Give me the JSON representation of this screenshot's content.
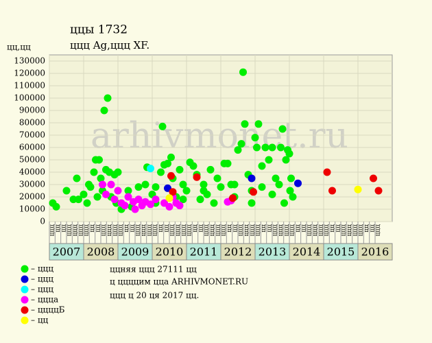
{
  "chart_data": {
    "type": "scatter",
    "title": "ццы 1732",
    "subtitle": "ццц Ag,ццц XF.",
    "y_label": "цц,цц",
    "watermark": "arhivmonet.ru",
    "xlim": [
      2007,
      2017
    ],
    "ylim": [
      0,
      130000
    ],
    "yticks": [
      0,
      10000,
      20000,
      30000,
      40000,
      50000,
      60000,
      70000,
      80000,
      90000,
      100000,
      110000,
      120000,
      130000
    ],
    "xticks": [
      2007,
      2008,
      2009,
      2010,
      2011,
      2012,
      2013,
      2014,
      2015,
      2016
    ],
    "x_sublabels": [
      "ццц",
      "цц",
      "цц",
      "ццц",
      "ццц",
      "ццц",
      "ццц",
      "цц",
      "цц",
      "ццц",
      "ццц",
      "ццц",
      "ццц",
      "цц",
      "цц",
      "ццц",
      "ццц",
      "ццц",
      "ццц",
      "цц",
      "цц",
      "ццц",
      "ццц",
      "ццц",
      "ццц",
      "цц",
      "цц",
      "ццц",
      "ццц",
      "ццц",
      "ццц",
      "цц",
      "цц",
      "ццц",
      "ццц",
      "ццц",
      "ццц",
      "цц",
      "цц",
      "ццц",
      "ццц",
      "ццц",
      "ццц",
      "цц",
      "цц",
      "ццц",
      "ццц",
      "ццц",
      "ццц",
      "цц",
      "цц",
      "ццц",
      "ццц",
      "ццц",
      "ццц",
      "цц",
      "цц",
      "ццц"
    ],
    "grid": true,
    "series": [
      {
        "name": "– ццц",
        "color": "#00ee00",
        "x": [
          2007.1,
          2007.2,
          2007.5,
          2007.7,
          2007.85,
          2007.8,
          2008.0,
          2008.1,
          2008.15,
          2008.2,
          2008.3,
          2008.35,
          2008.45,
          2008.4,
          2008.5,
          2008.55,
          2008.6,
          2008.7,
          2008.65,
          2008.75,
          2008.8,
          2008.9,
          2008.95,
          2009.0,
          2009.1,
          2009.3,
          2009.4,
          2009.6,
          2009.8,
          2009.85,
          2010.0,
          2010.1,
          2010.25,
          2010.3,
          2010.35,
          2010.45,
          2010.55,
          2010.6,
          2010.7,
          2010.8,
          2010.9,
          2011.0,
          2011.1,
          2011.2,
          2011.3,
          2011.4,
          2011.5,
          2011.6,
          2011.7,
          2011.8,
          2011.9,
          2012.0,
          2012.1,
          2012.2,
          2012.3,
          2012.4,
          2012.5,
          2012.6,
          2012.65,
          2012.7,
          2012.8,
          2012.9,
          2013.0,
          2013.05,
          2013.1,
          2013.2,
          2013.3,
          2013.4,
          2013.5,
          2013.6,
          2013.7,
          2013.75,
          2013.8,
          2013.9,
          2013.95,
          2014.0,
          2014.05,
          2014.1,
          2014.02,
          2013.85,
          2013.5,
          2013.2,
          2012.9,
          2012.4,
          2011.5,
          2010.9,
          2010.1
        ],
        "values": [
          15000,
          12000,
          25000,
          18000,
          18000,
          35000,
          22000,
          15000,
          30000,
          28000,
          40000,
          50000,
          50000,
          20000,
          35000,
          25000,
          90000,
          100000,
          42000,
          40000,
          20000,
          38000,
          15000,
          40000,
          10000,
          25000,
          12000,
          28000,
          30000,
          44000,
          22000,
          28000,
          40000,
          77000,
          46000,
          47000,
          52000,
          35000,
          20000,
          42000,
          30000,
          25000,
          48000,
          45000,
          38000,
          18000,
          30000,
          22000,
          42000,
          15000,
          35000,
          28000,
          47000,
          47000,
          30000,
          20000,
          58000,
          63000,
          121000,
          79000,
          38000,
          25000,
          68000,
          60000,
          79000,
          45000,
          60000,
          50000,
          60000,
          35000,
          30000,
          60000,
          75000,
          50000,
          58000,
          55000,
          35000,
          20000,
          25000,
          15000,
          22000,
          28000,
          15000,
          30000,
          25000,
          18000,
          15000
        ]
      },
      {
        "name": "– ццц",
        "color": "#0000dd",
        "x": [
          2010.45,
          2012.9,
          2014.25
        ],
        "values": [
          27000,
          35000,
          31000
        ]
      },
      {
        "name": "– ццц",
        "color": "#00ffff",
        "x": [
          2009.95
        ],
        "values": [
          43000
        ]
      },
      {
        "name": "– ццца",
        "color": "#ff00ff",
        "x": [
          2008.55,
          2008.65,
          2008.8,
          2008.9,
          2009.0,
          2009.1,
          2009.2,
          2009.3,
          2009.45,
          2009.5,
          2009.6,
          2009.7,
          2009.8,
          2009.95,
          2010.1,
          2010.35,
          2010.5,
          2010.6,
          2010.7,
          2010.8,
          2012.2,
          2012.3
        ],
        "values": [
          30000,
          22000,
          30000,
          18000,
          25000,
          15000,
          13000,
          20000,
          16000,
          10000,
          18000,
          13000,
          16000,
          14000,
          18000,
          15000,
          12000,
          20000,
          15000,
          13000,
          16000,
          17000
        ]
      },
      {
        "name": "– ццццБ",
        "color": "#ee0000",
        "x": [
          2010.55,
          2010.6,
          2011.3,
          2012.35,
          2012.95,
          2015.1,
          2015.25,
          2016.45,
          2016.6
        ],
        "values": [
          37000,
          24000,
          36000,
          19000,
          24000,
          40000,
          25000,
          35000,
          25000
        ]
      },
      {
        "name": "– цц",
        "color": "#ffff00",
        "x": [
          2010.5,
          2016.0
        ],
        "values": [
          19000,
          26000
        ]
      }
    ],
    "notes": [
      "ццняя ццц 27111 цц",
      "ц ццццим цца ARHIVMONET.RU",
      "ццц ц 20 ця 2017 цц."
    ]
  }
}
